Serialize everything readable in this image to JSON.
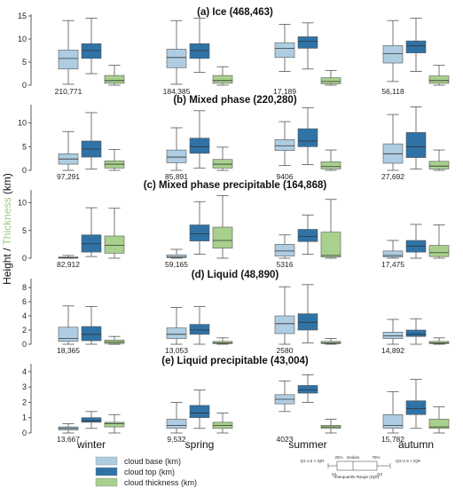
{
  "chart_data": {
    "type": "boxplot",
    "seasons": [
      "winter",
      "spring",
      "summer",
      "autumn"
    ],
    "ylabel_parts": [
      "Height / ",
      "Thickness",
      " (km)"
    ],
    "colors": {
      "base": "#aecde2",
      "top": "#2f73a6",
      "thickness": "#a8d18d",
      "edge": "#555555",
      "thickness_label": "#9ccd83"
    },
    "legend": [
      {
        "label": "cloud base (km)",
        "color": "#aecde2"
      },
      {
        "label": "cloud top (km)",
        "color": "#2f73a6"
      },
      {
        "label": "cloud thickness (km)",
        "color": "#a8d18d"
      }
    ],
    "key_labels": {
      "pct25": "25%",
      "median": "median",
      "pct75": "75%",
      "lower": "Q1-1.5 × IQR",
      "upper": "Q3+1.5 × IQR",
      "q1": "Q1",
      "q3": "Q3",
      "iqr": "Interquartile Range (IQR)"
    },
    "panels": [
      {
        "title": "(a) Ice (468,463)",
        "ylim": [
          0,
          15
        ],
        "yticks": [
          0,
          5,
          10,
          15
        ],
        "counts": [
          "210,771",
          "184,385",
          "17,189",
          "56,118"
        ],
        "boxes": [
          [
            [
              0.2,
              3.5,
              5.8,
              7.6,
              14.0
            ],
            [
              2.5,
              5.8,
              7.5,
              9.0,
              14.5
            ],
            [
              0.0,
              0.4,
              1.0,
              2.1,
              4.3
            ]
          ],
          [
            [
              0.2,
              3.8,
              6.0,
              7.8,
              14.0
            ],
            [
              2.8,
              5.8,
              7.5,
              9.0,
              14.5
            ],
            [
              0.0,
              0.4,
              1.0,
              2.1,
              4.0
            ]
          ],
          [
            [
              3.0,
              6.0,
              8.0,
              9.2,
              13.2
            ],
            [
              3.5,
              8.0,
              9.5,
              10.5,
              13.5
            ],
            [
              0.0,
              0.3,
              0.8,
              1.6,
              3.2
            ]
          ],
          [
            [
              0.8,
              4.8,
              6.8,
              8.6,
              14.0
            ],
            [
              3.0,
              7.0,
              8.5,
              9.6,
              14.5
            ],
            [
              0.0,
              0.4,
              1.0,
              2.0,
              4.3
            ]
          ]
        ]
      },
      {
        "title": "(b) Mixed phase (220,280)",
        "ylim": [
          0,
          13.5
        ],
        "yticks": [
          0,
          5,
          10
        ],
        "counts": [
          "97,291",
          "85,891",
          "9406",
          "27,692"
        ],
        "boxes": [
          [
            [
              0.0,
              1.3,
              2.4,
              3.5,
              8.2
            ],
            [
              0.3,
              2.8,
              4.5,
              6.2,
              12.2
            ],
            [
              0.0,
              0.5,
              1.3,
              2.0,
              4.4
            ]
          ],
          [
            [
              0.0,
              1.6,
              2.8,
              4.3,
              9.0
            ],
            [
              0.5,
              3.6,
              5.0,
              6.8,
              12.6
            ],
            [
              0.0,
              0.5,
              1.3,
              2.3,
              4.9
            ]
          ],
          [
            [
              1.0,
              4.2,
              5.2,
              6.5,
              10.3
            ],
            [
              1.2,
              5.0,
              6.2,
              8.8,
              13.2
            ],
            [
              0.0,
              0.3,
              0.8,
              1.8,
              4.3
            ]
          ],
          [
            [
              0.0,
              1.5,
              3.5,
              5.6,
              11.8
            ],
            [
              0.3,
              2.7,
              5.0,
              8.0,
              13.4
            ],
            [
              0.0,
              0.3,
              0.9,
              1.9,
              4.3
            ]
          ]
        ]
      },
      {
        "title": "(c) Mixed phase precipitable (164,868)",
        "ylim": [
          0,
          12
        ],
        "yticks": [
          0,
          5,
          10
        ],
        "counts": [
          "82,912",
          "59,165",
          "5316",
          "17,475"
        ],
        "boxes": [
          [
            [
              0.0,
              0.0,
              0.1,
              0.2,
              0.5
            ],
            [
              0.3,
              1.1,
              2.6,
              4.2,
              9.1
            ],
            [
              0.0,
              0.9,
              2.3,
              4.0,
              9.0
            ]
          ],
          [
            [
              0.0,
              0.1,
              0.2,
              0.6,
              1.6
            ],
            [
              0.7,
              3.1,
              4.4,
              6.0,
              10.2
            ],
            [
              0.0,
              1.8,
              3.2,
              5.6,
              11.3
            ]
          ],
          [
            [
              0.0,
              0.4,
              1.3,
              2.5,
              4.2
            ],
            [
              0.7,
              3.0,
              3.9,
              5.2,
              7.8
            ],
            [
              0.0,
              0.2,
              0.5,
              4.7,
              10.6
            ]
          ],
          [
            [
              0.0,
              0.2,
              0.5,
              1.3,
              3.2
            ],
            [
              0.0,
              1.1,
              2.2,
              3.2,
              6.1
            ],
            [
              0.0,
              0.3,
              1.0,
              2.3,
              6.0
            ]
          ]
        ]
      },
      {
        "title": "(d) Liquid (48,890)",
        "ylim": [
          0,
          9
        ],
        "yticks": [
          0,
          2,
          4,
          6,
          8
        ],
        "counts": [
          "18,365",
          "13,053",
          "2580",
          "14,892"
        ],
        "boxes": [
          [
            [
              0.0,
              0.4,
              0.8,
              2.4,
              5.4
            ],
            [
              0.0,
              0.5,
              1.4,
              2.5,
              5.3
            ],
            [
              0.0,
              0.1,
              0.3,
              0.6,
              1.1
            ]
          ],
          [
            [
              0.0,
              0.8,
              1.4,
              2.3,
              5.2
            ],
            [
              0.0,
              1.4,
              2.0,
              2.8,
              5.3
            ],
            [
              0.0,
              0.1,
              0.2,
              0.4,
              0.9
            ]
          ],
          [
            [
              0.0,
              1.5,
              2.9,
              4.0,
              8.1
            ],
            [
              0.2,
              2.0,
              3.1,
              4.3,
              8.4
            ],
            [
              0.0,
              0.1,
              0.2,
              0.4,
              0.8
            ]
          ],
          [
            [
              0.0,
              0.8,
              1.2,
              1.7,
              3.5
            ],
            [
              0.0,
              1.1,
              1.4,
              2.0,
              3.6
            ],
            [
              0.0,
              0.1,
              0.2,
              0.4,
              0.9
            ]
          ]
        ]
      },
      {
        "title": "(e) Liquid precipitable (43,004)",
        "ylim": [
          0,
          4.4
        ],
        "yticks": [
          0,
          1,
          2,
          3,
          4
        ],
        "counts": [
          "13,667",
          "9,532",
          "4023",
          "15,782"
        ],
        "boxes": [
          [
            [
              0.0,
              0.2,
              0.3,
              0.4,
              0.6
            ],
            [
              0.3,
              0.7,
              0.8,
              1.0,
              1.4
            ],
            [
              0.0,
              0.4,
              0.6,
              0.7,
              1.2
            ]
          ],
          [
            [
              0.0,
              0.3,
              0.5,
              0.9,
              2.0
            ],
            [
              0.3,
              1.0,
              1.3,
              1.8,
              2.8
            ],
            [
              0.0,
              0.3,
              0.5,
              0.7,
              1.3
            ]
          ],
          [
            [
              1.4,
              1.9,
              2.2,
              2.5,
              3.4
            ],
            [
              2.0,
              2.6,
              2.8,
              3.1,
              3.8
            ],
            [
              0.0,
              0.3,
              0.4,
              0.5,
              0.9
            ]
          ],
          [
            [
              0.0,
              0.3,
              0.5,
              1.2,
              2.7
            ],
            [
              0.3,
              1.2,
              1.6,
              2.1,
              3.5
            ],
            [
              0.0,
              0.3,
              0.4,
              0.9,
              1.7
            ]
          ]
        ]
      }
    ]
  }
}
